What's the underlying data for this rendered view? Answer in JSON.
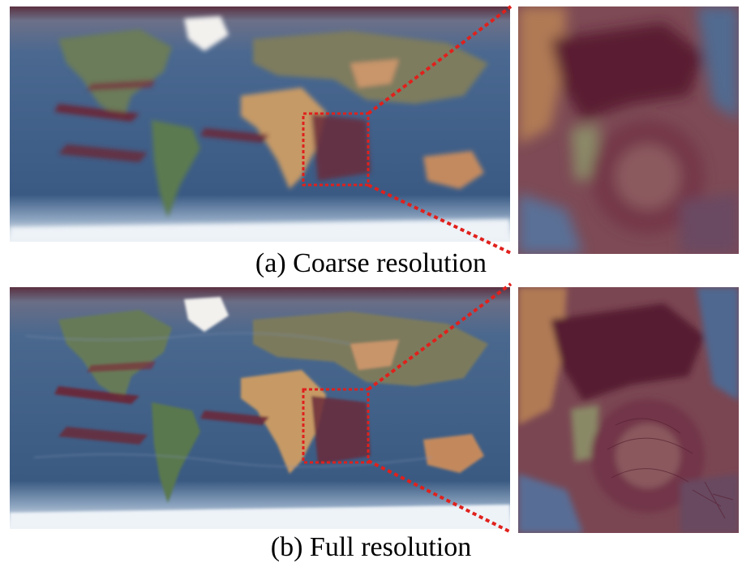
{
  "figure": {
    "panels": [
      {
        "caption": "(a) Coarse resolution"
      },
      {
        "caption": "(b) Full resolution"
      }
    ]
  },
  "colors": {
    "ocean": "#3f5f88",
    "ocean_dark": "#2d4a72",
    "land_green": "#5f7a55",
    "desert": "#c99a6a",
    "warm_band": "#6e2a3a",
    "ice": "#f1f4f8",
    "highlight_box": "#e0201c"
  }
}
